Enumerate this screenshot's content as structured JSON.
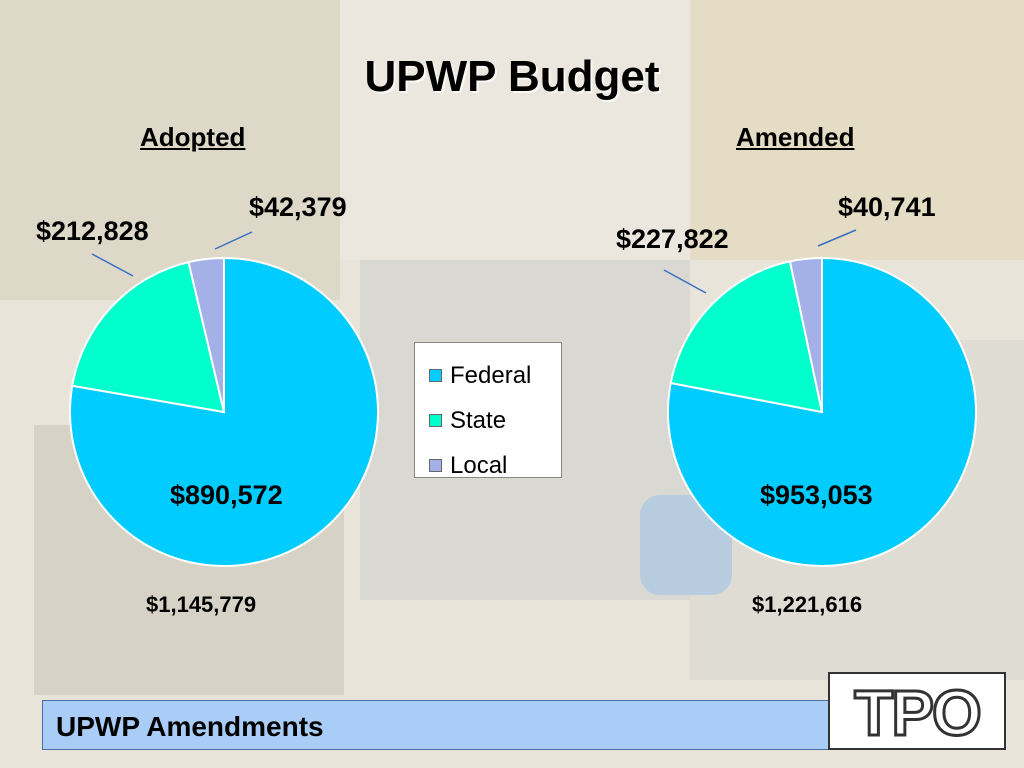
{
  "slide": {
    "title": "UPWP Budget",
    "footer": "UPWP Amendments",
    "logo_text": "TPO"
  },
  "legend": {
    "items": [
      {
        "label": "Federal",
        "color": "#00ccff"
      },
      {
        "label": "State",
        "color": "#00ffcc"
      },
      {
        "label": "Local",
        "color": "#a3b1e8"
      }
    ]
  },
  "colors": {
    "federal": "#00ccff",
    "state": "#00ffcc",
    "local": "#a3b1e8",
    "footer_bg": "#a9cdf6"
  },
  "chart_data": [
    {
      "type": "pie",
      "title": "Adopted",
      "categories": [
        "Federal",
        "State",
        "Local"
      ],
      "values": [
        890572,
        212828,
        42379
      ],
      "value_labels": [
        "$890,572",
        "$212,828",
        "$42,379"
      ],
      "total_label": "$1,145,779"
    },
    {
      "type": "pie",
      "title": "Amended",
      "categories": [
        "Federal",
        "State",
        "Local"
      ],
      "values": [
        953053,
        227822,
        40741
      ],
      "value_labels": [
        "$953,053",
        "$227,822",
        "$40,741"
      ],
      "total_label": "$1,221,616"
    }
  ]
}
